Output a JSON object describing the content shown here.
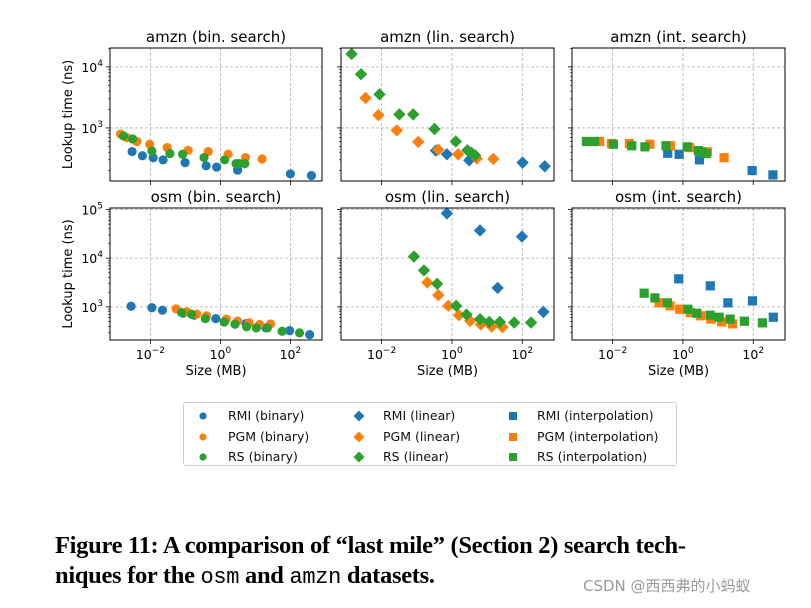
{
  "chart_data": {
    "type": "scatter",
    "scale": {
      "x": "log",
      "y": "log"
    },
    "grid": true,
    "xlabel": "Size (MB)",
    "ylabel": "Lookup time (ns)",
    "legend_placement": "bottom-center",
    "colors": {
      "RMI": "#1f77b4",
      "PGM": "#ff7f0e",
      "RS": "#2ca02c"
    },
    "legend": [
      {
        "label": "RMI (binary)",
        "marker": "circle",
        "color": "#1f77b4"
      },
      {
        "label": "RMI (linear)",
        "marker": "diamond",
        "color": "#1f77b4"
      },
      {
        "label": "RMI (interpolation)",
        "marker": "square",
        "color": "#1f77b4"
      },
      {
        "label": "PGM (binary)",
        "marker": "circle",
        "color": "#ff7f0e"
      },
      {
        "label": "PGM (linear)",
        "marker": "diamond",
        "color": "#ff7f0e"
      },
      {
        "label": "PGM (interpolation)",
        "marker": "square",
        "color": "#ff7f0e"
      },
      {
        "label": "RS (binary)",
        "marker": "circle",
        "color": "#2ca02c"
      },
      {
        "label": "RS (linear)",
        "marker": "diamond",
        "color": "#2ca02c"
      },
      {
        "label": "RS (interpolation)",
        "marker": "square",
        "color": "#2ca02c"
      }
    ],
    "panels": [
      {
        "title": "amzn (bin. search)",
        "marker": "circle",
        "xlim": [
          0.0007,
          800
        ],
        "ylim": [
          135,
          20400
        ],
        "yticks": [
          1000,
          10000
        ],
        "ytick_labels": [
          "10^3",
          "10^4"
        ],
        "xticks": [
          0.01,
          1,
          100
        ],
        "xtick_labels": [],
        "series": [
          {
            "name": "RMI",
            "x": [
              0.003,
              0.0059,
              0.012,
              0.023,
              0.098,
              0.39,
              0.78,
              3.1,
              100,
              400
            ],
            "y": [
              410,
              350,
              325,
              300,
              270,
              240,
              228,
              203,
              177,
              166
            ]
          },
          {
            "name": "PGM",
            "x": [
              0.0014,
              0.0021,
              0.0041,
              0.0095,
              0.03,
              0.12,
              0.45,
              1.66,
              5.2,
              15.5
            ],
            "y": [
              794,
              692,
              600,
              540,
              477,
              430,
              410,
              370,
              327,
              310
            ]
          },
          {
            "name": "RS",
            "x": [
              0.0017,
              0.0031,
              0.011,
              0.036,
              0.083,
              0.34,
              1.32,
              2.8,
              3.5,
              5.0
            ],
            "y": [
              741,
              660,
              418,
              380,
              370,
              327,
              300,
              260,
              260,
              260
            ]
          }
        ]
      },
      {
        "title": "amzn (lin. search)",
        "marker": "diamond",
        "xlim": [
          0.0007,
          800
        ],
        "ylim": [
          135,
          20400
        ],
        "yticks": [
          1000,
          10000
        ],
        "ytick_labels": [],
        "xticks": [
          0.01,
          1,
          100
        ],
        "xtick_labels": [],
        "series": [
          {
            "name": "RMI",
            "x": [
              0.35,
              0.72,
              3.1,
              102,
              437
            ],
            "y": [
              425,
              370,
              295,
              270,
              235
            ]
          },
          {
            "name": "PGM",
            "x": [
              0.0035,
              0.0081,
              0.027,
              0.11,
              0.41,
              1.5,
              5.1,
              15
            ],
            "y": [
              3100,
              1620,
              910,
              590,
              440,
              370,
              316,
              310
            ]
          },
          {
            "name": "RS",
            "x": [
              0.0014,
              0.0026,
              0.0087,
              0.032,
              0.079,
              0.32,
              1.29,
              2.75,
              3.6,
              4.6
            ],
            "y": [
              16300,
              7600,
              3550,
              1670,
              1670,
              960,
              600,
              430,
              390,
              355
            ]
          }
        ]
      },
      {
        "title": "amzn (int. search)",
        "marker": "square",
        "xlim": [
          0.0007,
          800
        ],
        "ylim": [
          135,
          20400
        ],
        "yticks": [
          1000,
          10000
        ],
        "ytick_labels": [],
        "xticks": [
          0.01,
          1,
          100
        ],
        "xtick_labels": [],
        "series": [
          {
            "name": "RMI",
            "x": [
              0.37,
              0.78,
              2.95,
              93,
              363
            ],
            "y": [
              385,
              370,
              300,
              200,
              170
            ]
          },
          {
            "name": "PGM",
            "x": [
              0.0043,
              0.0093,
              0.03,
              0.115,
              0.44,
              1.55,
              5.0,
              14.8
            ],
            "y": [
              600,
              555,
              555,
              540,
              510,
              475,
              405,
              325
            ]
          },
          {
            "name": "RS",
            "x": [
              0.0018,
              0.0031,
              0.0105,
              0.035,
              0.083,
              0.33,
              1.32,
              2.75,
              3.5,
              4.6
            ],
            "y": [
              600,
              600,
              540,
              510,
              490,
              510,
              490,
              425,
              405,
              380
            ]
          }
        ]
      },
      {
        "title": "osm (bin. search)",
        "marker": "circle",
        "xlim": [
          0.0007,
          800
        ],
        "ylim": [
          209,
          107000
        ],
        "yticks": [
          1000,
          10000,
          100000
        ],
        "ytick_labels": [
          "10^3",
          "10^4",
          "10^5"
        ],
        "xticks": [
          0.01,
          1,
          100
        ],
        "xtick_labels": [
          "10^-2",
          "10^0",
          "10^2"
        ],
        "series": [
          {
            "name": "RMI",
            "x": [
              0.0028,
              0.011,
              0.022,
              0.085,
              0.18,
              0.74,
              5.4,
              20,
              95,
              355
            ],
            "y": [
              1030,
              960,
              855,
              740,
              675,
              575,
              455,
              370,
              325,
              270
            ]
          },
          {
            "name": "PGM",
            "x": [
              0.054,
              0.11,
              0.21,
              0.4,
              1.48,
              3.1,
              6.6,
              13.2,
              27
            ],
            "y": [
              910,
              790,
              705,
              655,
              560,
              510,
              470,
              435,
              447
            ]
          },
          {
            "name": "RS",
            "x": [
              0.078,
              0.15,
              0.37,
              1.29,
              2.6,
              5.6,
              10.7,
              22,
              58,
              182
            ],
            "y": [
              765,
              705,
              575,
              490,
              440,
              390,
              370,
              370,
              316,
              293
            ]
          }
        ]
      },
      {
        "title": "osm (lin. search)",
        "marker": "diamond",
        "xlim": [
          0.0007,
          800
        ],
        "ylim": [
          209,
          107000
        ],
        "yticks": [
          1000,
          10000,
          100000
        ],
        "ytick_labels": [],
        "xticks": [
          0.01,
          1,
          100
        ],
        "xtick_labels": [
          "10^-2",
          "10^0",
          "10^2"
        ],
        "series": [
          {
            "name": "RMI",
            "x": [
              0.72,
              6.3,
              98,
              20,
              400
            ],
            "y": [
              83000,
              37000,
              27700,
              2450,
              790
            ]
          },
          {
            "name": "PGM",
            "x": [
              0.2,
              0.41,
              0.79,
              1.58,
              3.3,
              6.6,
              13.5,
              27.5
            ],
            "y": [
              3160,
              1740,
              1050,
              675,
              516,
              434,
              395,
              383
            ]
          },
          {
            "name": "RS",
            "x": [
              0.083,
              0.16,
              0.38,
              1.32,
              2.6,
              6.3,
              11.5,
              23,
              59,
              178
            ],
            "y": [
              10800,
              5600,
              2970,
              1050,
              695,
              560,
              490,
              490,
              476,
              476
            ]
          }
        ]
      },
      {
        "title": "osm (int. search)",
        "marker": "square",
        "xlim": [
          0.0007,
          800
        ],
        "ylim": [
          209,
          107000
        ],
        "yticks": [
          1000,
          10000,
          100000
        ],
        "ytick_labels": [],
        "xticks": [
          0.01,
          1,
          100
        ],
        "xtick_labels": [
          "10^-2",
          "10^0",
          "10^2"
        ],
        "series": [
          {
            "name": "RMI",
            "x": [
              0.76,
              6.0,
              19,
              95,
              372
            ],
            "y": [
              3760,
              2700,
              1210,
              1330,
              613
            ]
          },
          {
            "name": "PGM",
            "x": [
              0.21,
              0.43,
              0.81,
              1.62,
              3.16,
              6.2,
              12.6,
              25.7
            ],
            "y": [
              1210,
              1050,
              895,
              765,
              655,
              560,
              490,
              447
            ]
          },
          {
            "name": "RS",
            "x": [
              0.079,
              0.16,
              0.36,
              1.38,
              2.5,
              5.9,
              10.7,
              22,
              56,
              182
            ],
            "y": [
              1910,
              1530,
              1210,
              895,
              740,
              675,
              613,
              560,
              508,
              470
            ]
          }
        ]
      }
    ]
  },
  "caption": {
    "line1": "Figure 11: A comparison of “last mile” (Section 2) search tech-",
    "line2_pre": "niques for the ",
    "dataset1": "osm",
    "line2_mid": " and ",
    "dataset2": "amzn",
    "line2_post": " datasets."
  },
  "watermark": "CSDN @西西弗的小蚂蚁"
}
